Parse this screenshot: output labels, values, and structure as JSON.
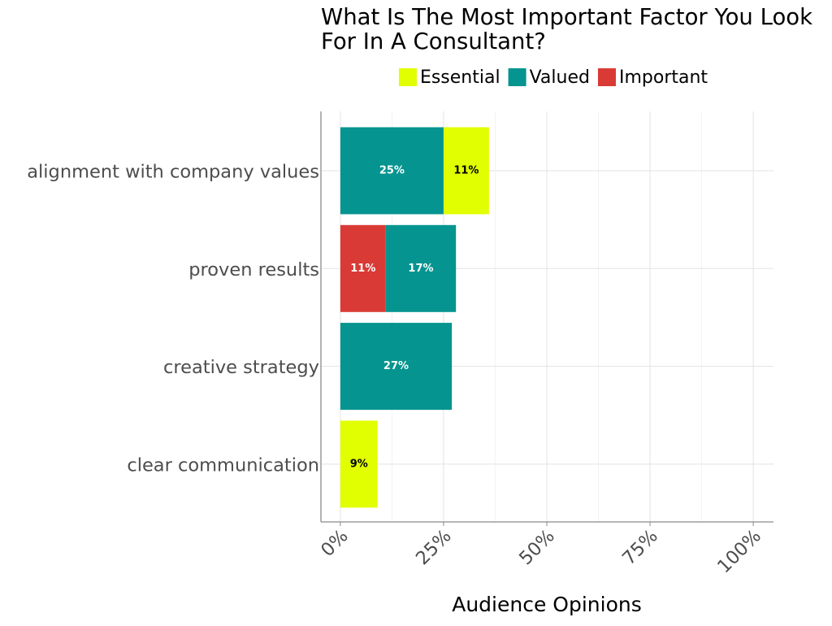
{
  "chart_data": {
    "type": "stacked-bar-horizontal",
    "title": "What Is The Most Important Factor You Look For In A Consultant?",
    "x_label": "Audience Opinions",
    "categories": [
      "alignment with company values",
      "proven results",
      "creative strategy",
      "clear communication"
    ],
    "series": [
      {
        "name": "Essential",
        "color": "#e1ff00",
        "values": [
          11,
          null,
          null,
          9
        ],
        "value_labels": [
          "11%",
          null,
          null,
          "9%"
        ]
      },
      {
        "name": "Valued",
        "color": "#05948f",
        "values": [
          25,
          17,
          27,
          null
        ],
        "value_labels": [
          "25%",
          "17%",
          "27%",
          null
        ]
      },
      {
        "name": "Important",
        "color": "#d93a35",
        "values": [
          null,
          11,
          null,
          null
        ],
        "value_labels": [
          null,
          "11%",
          null,
          null
        ]
      }
    ],
    "xlim": [
      -4.7,
      104.9
    ],
    "xticks": [
      {
        "value": 0,
        "label": "0%"
      },
      {
        "value": 25,
        "label": "25%"
      },
      {
        "value": 50,
        "label": "50%"
      },
      {
        "value": 75,
        "label": "75%"
      },
      {
        "value": 100,
        "label": "100%"
      }
    ],
    "grid": true,
    "legend_position": "top"
  }
}
